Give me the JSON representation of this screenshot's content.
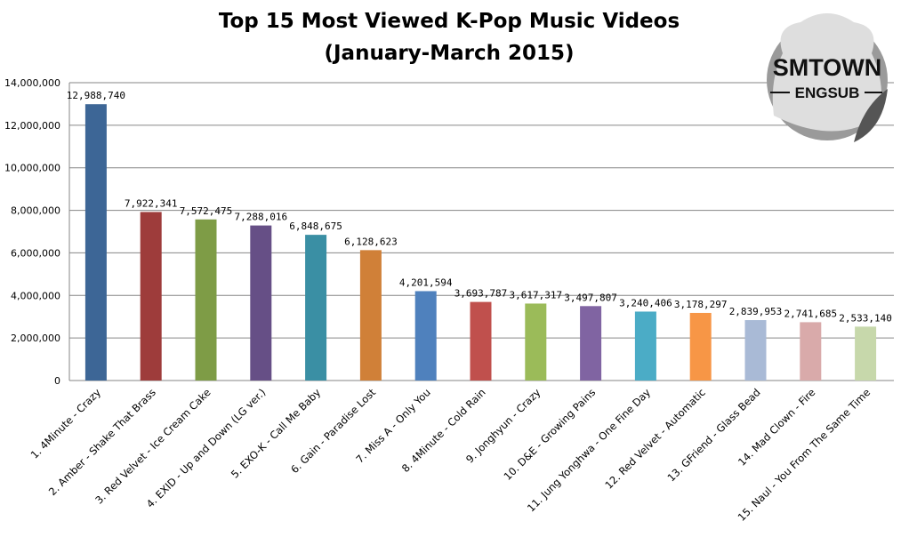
{
  "chart_data": {
    "type": "bar",
    "title": [
      "Top 15 Most Viewed K-Pop Music Videos",
      "(January-March 2015)"
    ],
    "xlabel": "",
    "ylabel": "",
    "ylim": [
      0,
      14000000
    ],
    "yticks": [
      "0",
      "2,000,000",
      "4,000,000",
      "6,000,000",
      "8,000,000",
      "10,000,000",
      "12,000,000",
      "14,000,000"
    ],
    "grid": true,
    "categories": [
      "1. 4Minute - Crazy",
      "2. Amber - Shake That Brass",
      "3. Red Velvet - Ice Cream Cake",
      "4. EXID - Up and Down (LG ver.)",
      "5. EXO-K - Call Me Baby",
      "6. Gain - Paradise Lost",
      "7. Miss A - Only You",
      "8. 4Minute - Cold Rain",
      "9. Jonghyun - Crazy",
      "10. D&E - Growing Pains",
      "11. Jung Yonghwa - One Fine Day",
      "12. Red Velvet - Automatic",
      "13. GFriend - Glass Bead",
      "14. Mad Clown - Fire",
      "15. Naul - You From The Same Time"
    ],
    "values": [
      12988740,
      7922341,
      7572475,
      7288016,
      6848675,
      6128623,
      4201594,
      3693787,
      3617317,
      3497807,
      3240406,
      3178297,
      2839953,
      2741685,
      2533140
    ],
    "data_labels": [
      "12,988,740",
      "7,922,341",
      "7,572,475",
      "7,288,016",
      "6,848,675",
      "6,128,623",
      "4,201,594",
      "3,693,787",
      "3,617,317",
      "3,497,807",
      "3,240,406",
      "3,178,297",
      "2,839,953",
      "2,741,685",
      "2,533,140"
    ],
    "colors": [
      "#3D6696",
      "#9E3C3B",
      "#7E9C46",
      "#664F86",
      "#3A8FA4",
      "#D08038",
      "#4F81BD",
      "#C0504D",
      "#9BBB59",
      "#8064A2",
      "#4BACC6",
      "#F79646",
      "#A9BAD6",
      "#D9AAAA",
      "#C7D8AB"
    ]
  },
  "logo": {
    "line1": "SMTOWN",
    "line2": "ENGSUB"
  }
}
